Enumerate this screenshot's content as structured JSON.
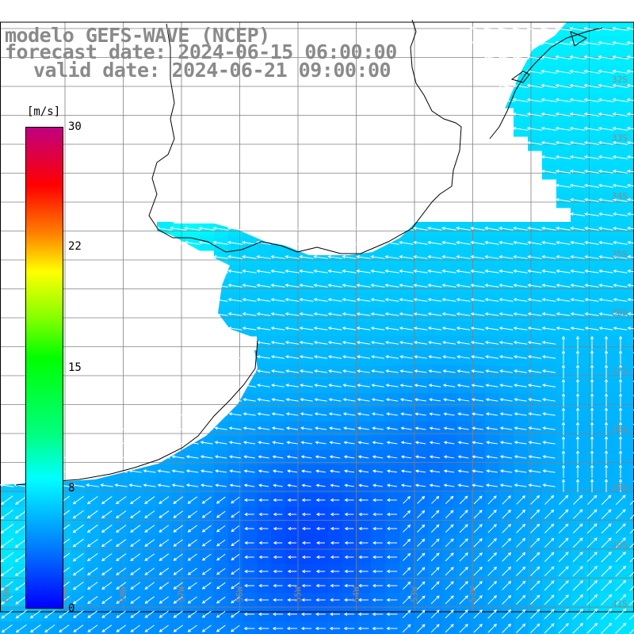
{
  "header": {
    "line1": "modelo GEFS-WAVE (NCEP)",
    "line2": "forecast date: 2024-06-15 06:00:00",
    "line3": "valid date: 2024-06-21 09:00:00"
  },
  "colorbar": {
    "unit": "[m/s]",
    "ticks": [
      "30",
      "22",
      "15",
      "8",
      "0"
    ],
    "min": 0,
    "max": 30,
    "colors": [
      "#0000ff",
      "#0080ff",
      "#00ffff",
      "#00ff80",
      "#00ff00",
      "#ffff00",
      "#ff8000",
      "#ff0000",
      "#c00080"
    ]
  },
  "map": {
    "longitude_labels": [
      "60W",
      "59W",
      "58W",
      "57W",
      "56W",
      "55W",
      "54W",
      "53W",
      "52W"
    ],
    "latitude_labels": [
      "32S",
      "33S",
      "34S",
      "35S",
      "36S",
      "37S",
      "38S",
      "39S",
      "40S",
      "41S"
    ],
    "land_color": "#ffffff",
    "coast_color": "#000000",
    "grid_color": "#808080"
  }
}
